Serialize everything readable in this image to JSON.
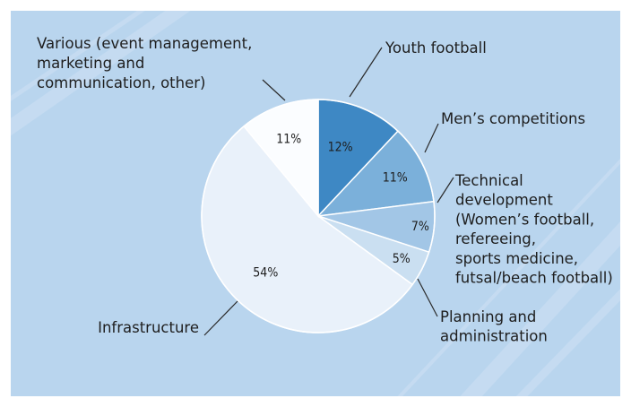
{
  "colors": {
    "panel": "#b9d5ee",
    "stripe": "#c8ddf2",
    "border": "#ffffff",
    "leader": "#2a2a2a"
  },
  "chart_data": {
    "type": "pie",
    "start": "12 o'clock",
    "direction": "clockwise",
    "slices": [
      {
        "name": "Youth football",
        "value": 12,
        "value_label": "12%",
        "color": "#3e88c4",
        "label_lines": [
          "Youth football"
        ]
      },
      {
        "name": "Men's competitions",
        "value": 11,
        "value_label": "11%",
        "color": "#7bb0da",
        "label_lines": [
          "Men’s competitions"
        ]
      },
      {
        "name": "Technical development",
        "value": 7,
        "value_label": "7%",
        "color": "#a2c6e6",
        "label_lines": [
          "Technical",
          "development",
          "(Women’s football,",
          "refereeing,",
          "sports medicine,",
          "futsal/beach football)"
        ]
      },
      {
        "name": "Planning and administration",
        "value": 5,
        "value_label": "5%",
        "color": "#cadff1",
        "label_lines": [
          "Planning and",
          "administration"
        ]
      },
      {
        "name": "Infrastructure",
        "value": 54,
        "value_label": "54%",
        "color": "#e9f1fa",
        "label_lines": [
          "Infrastructure"
        ]
      },
      {
        "name": "Various",
        "value": 11,
        "value_label": "11%",
        "color": "#fbfdff",
        "label_lines": [
          "Various (event management,",
          "marketing and",
          "communication, other)"
        ]
      }
    ]
  }
}
